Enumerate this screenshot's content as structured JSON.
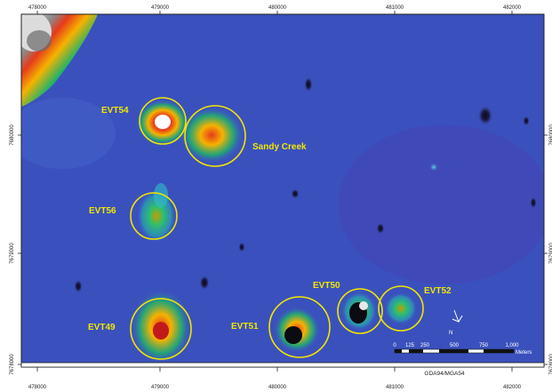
{
  "map": {
    "x_ticks": [
      "478000",
      "479000",
      "480000",
      "481000",
      "482000"
    ],
    "y_ticks": [
      "7680000",
      "7679000",
      "7678000"
    ],
    "targets": [
      {
        "id": "evt54",
        "label": "EVT54"
      },
      {
        "id": "sandy-creek",
        "label": "Sandy Creek"
      },
      {
        "id": "evt56",
        "label": "EVT56"
      },
      {
        "id": "evt49",
        "label": "EVT49"
      },
      {
        "id": "evt51",
        "label": "EVT51"
      },
      {
        "id": "evt50",
        "label": "EVT50"
      },
      {
        "id": "evt52",
        "label": "EVT52"
      }
    ],
    "scale_bar": {
      "ticks": [
        "0",
        "125",
        "250",
        "500",
        "750",
        "1,000"
      ],
      "unit": "Meters"
    },
    "north_label": "N",
    "projection": "GDA94/MGA54",
    "colors": {
      "background": "#3f57c4",
      "target_circle": "#f2e600",
      "frame": "#222222"
    }
  }
}
